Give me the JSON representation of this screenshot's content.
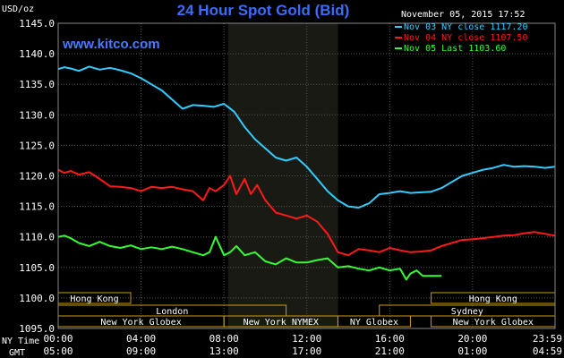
{
  "chart_data": {
    "type": "line",
    "title": "24 Hour Spot Gold (Bid)",
    "timestamp": "November 05, 2015 17:52",
    "unit_label": "USD/oz",
    "watermark": "www.kitco.com",
    "ylim": [
      1095,
      1145
    ],
    "yticks": [
      1145.0,
      1140.0,
      1135.0,
      1130.0,
      1125.0,
      1120.0,
      1115.0,
      1110.0,
      1105.0,
      1100.0,
      1095.0
    ],
    "ny_time_label": "NY Time",
    "gmt_label": "GMT",
    "xticks_ny": [
      "00:00",
      "04:00",
      "08:00",
      "12:00",
      "16:00",
      "20:00",
      "23:59"
    ],
    "xticks_gmt": [
      "05:00",
      "09:00",
      "13:00",
      "17:00",
      "21:00",
      "01:00",
      "04:59"
    ],
    "xticks_hours": [
      0,
      4,
      8,
      12,
      16,
      20,
      23.98
    ],
    "shaded_hours": [
      8.2,
      13.5
    ],
    "grid": true,
    "legend_position": "top-right",
    "sessions": [
      {
        "label": "Hong Kong",
        "start": 0,
        "end": 3.5,
        "row": 0
      },
      {
        "label": "Hong Kong",
        "start": 18.0,
        "end": 23.98,
        "row": 0
      },
      {
        "label": "London",
        "start": 0,
        "end": 11.0,
        "row": 1
      },
      {
        "label": "Sydney",
        "start": 15.5,
        "end": 23.98,
        "row": 1
      },
      {
        "label": "New York Globex",
        "start": 0,
        "end": 8.0,
        "row": 2
      },
      {
        "label": "New York NYMEX",
        "start": 8.0,
        "end": 13.5,
        "row": 2
      },
      {
        "label": "NY Globex",
        "start": 13.5,
        "end": 17.0,
        "row": 2
      },
      {
        "label": "New York Globex",
        "start": 18.0,
        "end": 23.98,
        "row": 2
      }
    ],
    "series": [
      {
        "name": "Nov 03 NY close 1117.20",
        "color": "#33ccff",
        "x": [
          0,
          0.3,
          0.6,
          1.0,
          1.5,
          2.0,
          2.5,
          3.0,
          3.5,
          4.0,
          4.5,
          5.0,
          5.5,
          6.0,
          6.5,
          7.0,
          7.5,
          8.0,
          8.5,
          9.0,
          9.5,
          10.0,
          10.5,
          11.0,
          11.5,
          12.0,
          12.5,
          13.0,
          13.5,
          14.0,
          14.5,
          15.0,
          15.5,
          16.0,
          16.5,
          17.0,
          17.5,
          18.0,
          18.5,
          19.0,
          19.5,
          20.0,
          20.5,
          21.0,
          21.5,
          22.0,
          22.5,
          23.0,
          23.5,
          23.98
        ],
        "y": [
          1137.5,
          1137.8,
          1137.6,
          1137.2,
          1137.9,
          1137.4,
          1137.7,
          1137.3,
          1136.8,
          1136.0,
          1135.0,
          1134.0,
          1132.5,
          1131.0,
          1131.6,
          1131.5,
          1131.3,
          1131.8,
          1130.5,
          1128.0,
          1126.0,
          1124.5,
          1123.0,
          1122.5,
          1123.0,
          1121.5,
          1119.5,
          1117.5,
          1116.0,
          1115.0,
          1114.8,
          1115.5,
          1117.0,
          1117.2,
          1117.5,
          1117.2,
          1117.3,
          1117.4,
          1118.0,
          1119.0,
          1120.0,
          1120.5,
          1121.0,
          1121.3,
          1121.8,
          1121.5,
          1121.6,
          1121.5,
          1121.3,
          1121.5
        ]
      },
      {
        "name": "Nov 04 NY close 1107.50",
        "color": "#ff1a1a",
        "x": [
          0,
          0.3,
          0.6,
          1.0,
          1.5,
          2.0,
          2.5,
          3.0,
          3.5,
          4.0,
          4.5,
          5.0,
          5.5,
          6.0,
          6.5,
          7.0,
          7.3,
          7.6,
          8.0,
          8.3,
          8.6,
          9.0,
          9.3,
          9.6,
          10.0,
          10.5,
          11.0,
          11.5,
          12.0,
          12.5,
          13.0,
          13.5,
          14.0,
          14.5,
          15.0,
          15.5,
          16.0,
          16.5,
          17.0,
          17.5,
          18.0,
          18.5,
          19.0,
          19.5,
          20.0,
          20.5,
          21.0,
          21.5,
          22.0,
          22.5,
          23.0,
          23.5,
          23.98
        ],
        "y": [
          1121.0,
          1120.5,
          1120.8,
          1120.2,
          1120.6,
          1119.5,
          1118.3,
          1118.2,
          1118.0,
          1117.5,
          1118.2,
          1118.0,
          1118.2,
          1117.8,
          1117.5,
          1116.0,
          1118.0,
          1117.5,
          1118.5,
          1120.0,
          1117.0,
          1119.5,
          1117.0,
          1118.5,
          1116.0,
          1114.0,
          1113.5,
          1113.0,
          1113.5,
          1112.5,
          1110.5,
          1107.5,
          1107.0,
          1108.0,
          1107.8,
          1107.5,
          1108.2,
          1107.8,
          1107.5,
          1107.6,
          1107.8,
          1108.5,
          1109.0,
          1109.5,
          1109.6,
          1109.8,
          1110.0,
          1110.2,
          1110.3,
          1110.6,
          1110.8,
          1110.5,
          1110.2
        ]
      },
      {
        "name": "Nov 05 Last 1103.60",
        "color": "#33ff33",
        "x": [
          0,
          0.3,
          0.6,
          1.0,
          1.5,
          2.0,
          2.5,
          3.0,
          3.5,
          4.0,
          4.5,
          5.0,
          5.5,
          6.0,
          6.5,
          7.0,
          7.3,
          7.6,
          8.0,
          8.3,
          8.6,
          9.0,
          9.5,
          10.0,
          10.5,
          11.0,
          11.5,
          12.0,
          12.5,
          13.0,
          13.5,
          14.0,
          14.5,
          15.0,
          15.5,
          16.0,
          16.5,
          16.8,
          17.0,
          17.3,
          17.6,
          17.9,
          18.2,
          18.5
        ],
        "y": [
          1110.0,
          1110.2,
          1109.8,
          1109.0,
          1108.5,
          1109.2,
          1108.5,
          1108.2,
          1108.6,
          1108.0,
          1108.3,
          1108.0,
          1108.4,
          1108.0,
          1107.5,
          1107.0,
          1107.5,
          1110.0,
          1107.0,
          1107.5,
          1108.5,
          1107.0,
          1107.5,
          1106.0,
          1105.5,
          1106.5,
          1105.8,
          1105.8,
          1106.2,
          1106.5,
          1105.0,
          1105.2,
          1104.8,
          1104.5,
          1105.0,
          1104.5,
          1104.8,
          1103.0,
          1104.0,
          1104.5,
          1103.6,
          1103.6,
          1103.6,
          1103.6
        ]
      }
    ]
  }
}
